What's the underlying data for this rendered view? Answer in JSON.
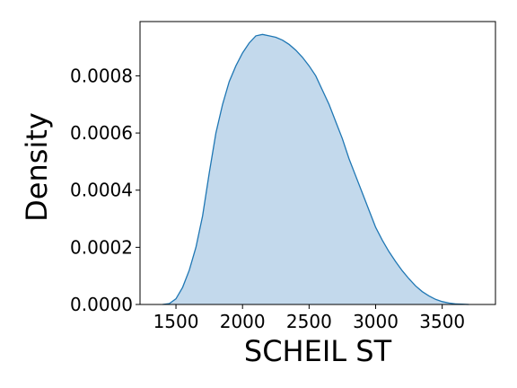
{
  "chart_data": {
    "type": "area",
    "title": "",
    "xlabel": "SCHEIL ST",
    "ylabel": "Density",
    "xlim": [
      1230,
      3900
    ],
    "ylim": [
      0,
      0.00099
    ],
    "xticks": [
      1500,
      2000,
      2500,
      3000,
      3500
    ],
    "xtick_labels": [
      "1500",
      "2000",
      "2500",
      "3000",
      "3500"
    ],
    "yticks": [
      0,
      0.0002,
      0.0004,
      0.0006,
      0.0008
    ],
    "ytick_labels": [
      "0.0000",
      "0.0002",
      "0.0004",
      "0.0006",
      "0.0008"
    ],
    "grid": false,
    "legend": "none",
    "series": [
      {
        "x": [
          1400,
          1450,
          1500,
          1550,
          1600,
          1650,
          1700,
          1750,
          1800,
          1850,
          1900,
          1950,
          2000,
          2050,
          2100,
          2150,
          2200,
          2250,
          2300,
          2350,
          2400,
          2450,
          2500,
          2550,
          2600,
          2650,
          2700,
          2750,
          2800,
          2850,
          2900,
          2950,
          3000,
          3050,
          3100,
          3150,
          3200,
          3250,
          3300,
          3350,
          3400,
          3450,
          3500,
          3550,
          3600,
          3650,
          3700
        ],
        "y": [
          0.0,
          3e-06,
          2e-05,
          6e-05,
          0.00012,
          0.0002,
          0.00031,
          0.00046,
          0.0006,
          0.0007,
          0.00078,
          0.000835,
          0.00088,
          0.000915,
          0.00094,
          0.000945,
          0.00094,
          0.000935,
          0.000925,
          0.00091,
          0.00089,
          0.000865,
          0.000835,
          0.0008,
          0.00075,
          0.0007,
          0.00064,
          0.00058,
          0.00051,
          0.00045,
          0.00039,
          0.00033,
          0.00027,
          0.000225,
          0.000185,
          0.00015,
          0.000118,
          9e-05,
          6.5e-05,
          4.5e-05,
          3e-05,
          1.8e-05,
          1e-05,
          5e-06,
          2e-06,
          1e-06,
          0.0
        ],
        "fill_color": "#c3d9ec",
        "line_color": "#1f77b4"
      }
    ],
    "colors": {
      "fill": "#c3d9ec",
      "line": "#1f77b4",
      "axes": "#000000"
    }
  }
}
